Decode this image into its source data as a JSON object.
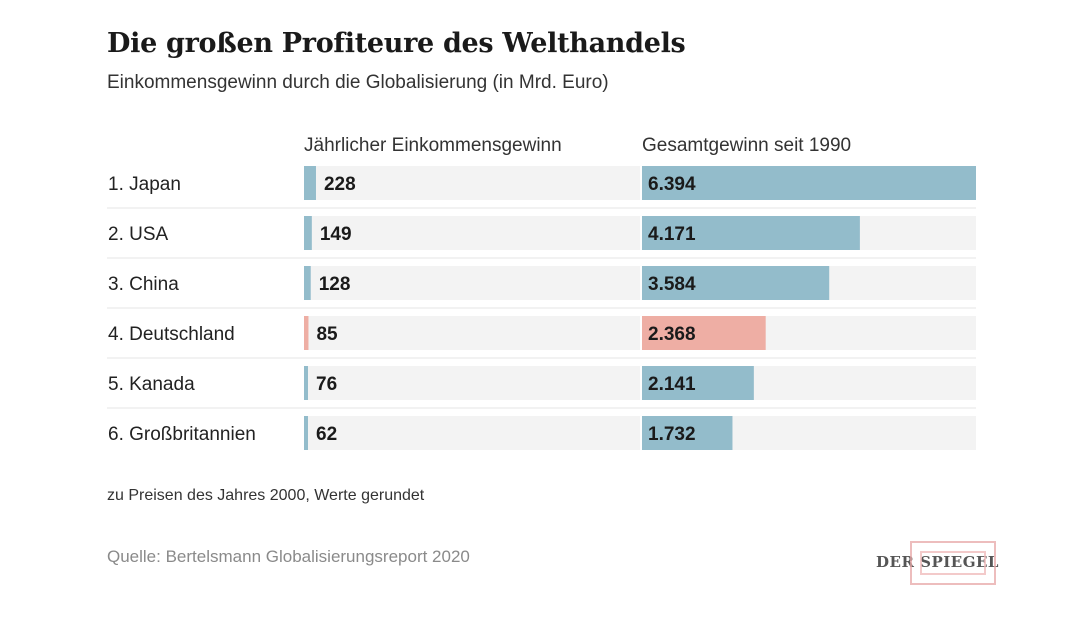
{
  "title": "Die großen Profiteure des Welthandels",
  "subtitle": "Einkommensgewinn durch die Globalisierung (in Mrd. Euro)",
  "column_headers": {
    "annual": "Jährlicher Einkommensgewinn",
    "total": "Gesamtgewinn seit 1990"
  },
  "footnote": "zu Preisen des Jahres 2000, Werte gerundet",
  "source": "Quelle: Bertelsmann Globalisierungsreport 2020",
  "logo": "DER SPIEGEL",
  "colors": {
    "bar": "#93bccb",
    "highlight": "#eeaea4",
    "track": "#f3f3f3",
    "divider": "#e6e6e6"
  },
  "chart_data": {
    "type": "bar",
    "title": "Die großen Profiteure des Welthandels",
    "subtitle": "Einkommensgewinn durch die Globalisierung (in Mrd. Euro)",
    "categories": [
      "1. Japan",
      "2. USA",
      "3. China",
      "4. Deutschland",
      "5. Kanada",
      "6. Großbritannien"
    ],
    "highlight_index": 3,
    "series": [
      {
        "name": "Jährlicher Einkommensgewinn",
        "values": [
          228,
          149,
          128,
          85,
          76,
          62
        ],
        "labels": [
          "228",
          "149",
          "128",
          "85",
          "76",
          "62"
        ],
        "max": 6394
      },
      {
        "name": "Gesamtgewinn seit 1990",
        "values": [
          6394,
          4171,
          3584,
          2368,
          2141,
          1732
        ],
        "labels": [
          "6.394",
          "4.171",
          "3.584",
          "2.368",
          "2.141",
          "1.732"
        ],
        "max": 6394
      }
    ]
  }
}
